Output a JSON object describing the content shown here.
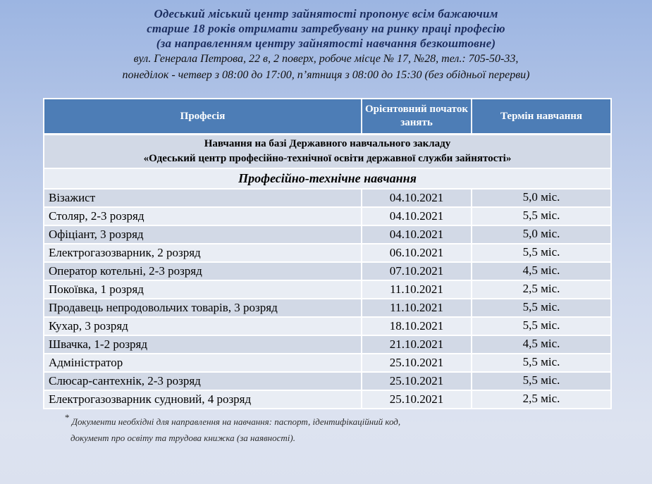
{
  "header": {
    "title_lines": [
      "Одеський міський центр зайнятості пропонує всім бажаючим",
      "старше 18 років отримати затребувану на ринку праці професію",
      "(за направленням центру зайнятості навчання безкоштовне)"
    ],
    "address_lines": [
      "вул. Генерала Петрова, 22 в,  2 поверх, робоче місце № 17, №28, тел.: 705-50-33,",
      "понеділок - четвер з 08:00 до 17:00, п’ятниця з 08:00 до 15:30 (без обідньої перерви)"
    ]
  },
  "table": {
    "columns": [
      "Професія",
      "Орієнтовний початок занять",
      "Термін навчання"
    ],
    "section_school_line1": "Навчання на базі Державного навчального закладу",
    "section_school_line2": "«Одеський центр професійно-технічної освіти державної служби зайнятості»",
    "section_type": "Професійно-технічне навчання",
    "rows": [
      {
        "profession": "Візажист",
        "start_date": "04.10.2021",
        "term": "5,0 міс."
      },
      {
        "profession": "Столяр, 2-3 розряд",
        "start_date": "04.10.2021",
        "term": "5,5 міс."
      },
      {
        "profession": "Офіціант, 3 розряд",
        "start_date": "04.10.2021",
        "term": "5,0 міс."
      },
      {
        "profession": "Електрогазозварник, 2 розряд",
        "start_date": "06.10.2021",
        "term": "5,5 міс."
      },
      {
        "profession": "Оператор котельні, 2-3 розряд",
        "start_date": "07.10.2021",
        "term": "4,5 міс."
      },
      {
        "profession": "Покоївка, 1 розряд",
        "start_date": "11.10.2021",
        "term": "2,5 міс."
      },
      {
        "profession": "Продавець непродовольчих товарів, 3 розряд",
        "start_date": "11.10.2021",
        "term": "5,5 міс."
      },
      {
        "profession": "Кухар, 3 розряд",
        "start_date": "18.10.2021",
        "term": "5,5 міс."
      },
      {
        "profession": "Швачка, 1-2 розряд",
        "start_date": "21.10.2021",
        "term": "4,5 міс."
      },
      {
        "profession": "Адміністратор",
        "start_date": "25.10.2021",
        "term": "5,5 міс."
      },
      {
        "profession": "Слюсар-сантехнік, 2-3 розряд",
        "start_date": "25.10.2021",
        "term": "5,5 міс."
      },
      {
        "profession": "Електрогазозварник судновий, 4 розряд",
        "start_date": "25.10.2021",
        "term": "2,5 міс."
      }
    ]
  },
  "footnote": {
    "asterisk": "*",
    "line1": " Документи необхідні для направлення на навчання: паспорт, ідентифікаційний код,",
    "line2": "документ про освіту та трудова книжка (за наявності)."
  },
  "colors": {
    "header_bg": "#4d7db6",
    "row_dark": "#d2d9e6",
    "row_light": "#e9edf4",
    "title_navy": "#1b2d5e",
    "page_gradient_top": "#9cb5e2",
    "page_gradient_bottom": "#dde3f0"
  }
}
